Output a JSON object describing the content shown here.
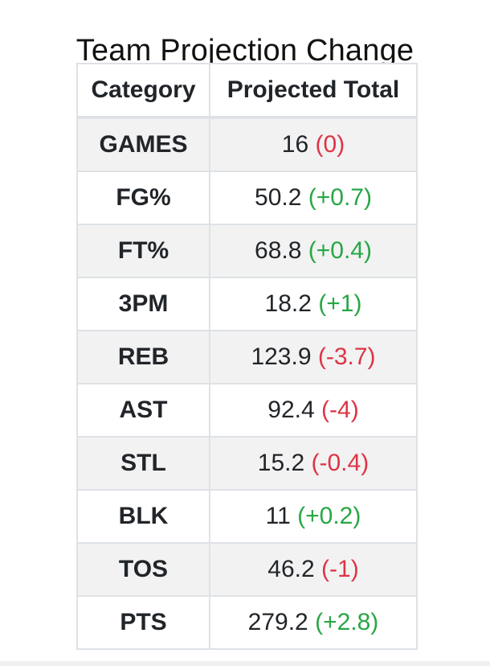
{
  "title": "Team Projection Change",
  "table": {
    "headers": [
      "Category",
      "Projected Total"
    ],
    "rows": [
      {
        "category": "GAMES",
        "total": "16",
        "change": "(0)",
        "direction": "neg"
      },
      {
        "category": "FG%",
        "total": "50.2",
        "change": "(+0.7)",
        "direction": "pos"
      },
      {
        "category": "FT%",
        "total": "68.8",
        "change": "(+0.4)",
        "direction": "pos"
      },
      {
        "category": "3PM",
        "total": "18.2",
        "change": "(+1)",
        "direction": "pos"
      },
      {
        "category": "REB",
        "total": "123.9",
        "change": "(-3.7)",
        "direction": "neg"
      },
      {
        "category": "AST",
        "total": "92.4",
        "change": "(-4)",
        "direction": "neg"
      },
      {
        "category": "STL",
        "total": "15.2",
        "change": "(-0.4)",
        "direction": "neg"
      },
      {
        "category": "BLK",
        "total": "11",
        "change": "(+0.2)",
        "direction": "pos"
      },
      {
        "category": "TOS",
        "total": "46.2",
        "change": "(-1)",
        "direction": "neg"
      },
      {
        "category": "PTS",
        "total": "279.2",
        "change": "(+2.8)",
        "direction": "pos"
      }
    ]
  },
  "colors": {
    "positive": "#28a745",
    "negative": "#dc3545",
    "stripe": "#f2f2f2",
    "border": "#dee2e6"
  }
}
